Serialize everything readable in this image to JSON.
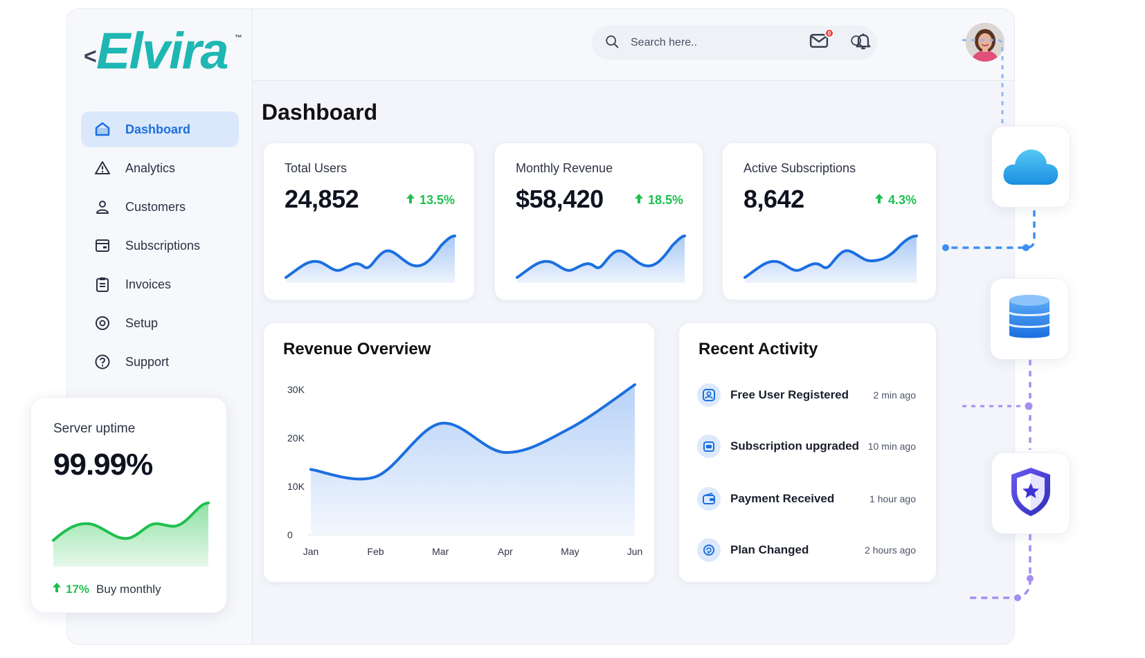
{
  "brand": {
    "name": "Elvira",
    "tm": "™",
    "chevron": "<"
  },
  "sidebar": {
    "items": [
      {
        "label": "Dashboard",
        "icon": "home-icon",
        "active": true
      },
      {
        "label": "Analytics",
        "icon": "warning-triangle-icon"
      },
      {
        "label": "Customers",
        "icon": "user-icon"
      },
      {
        "label": "Subscriptions",
        "icon": "card-icon"
      },
      {
        "label": "Invoices",
        "icon": "clipboard-icon"
      },
      {
        "label": "Setup",
        "icon": "settings-icon"
      },
      {
        "label": "Support",
        "icon": "help-icon"
      }
    ]
  },
  "header": {
    "search_placeholder": "Search here..",
    "mail_badge": "0"
  },
  "page": {
    "title": "Dashboard"
  },
  "stats": [
    {
      "label": "Total Users",
      "value": "24,852",
      "change": "13.5%"
    },
    {
      "label": "Monthly Revenue",
      "value": "$58,420",
      "change": "18.5%"
    },
    {
      "label": "Active Subscriptions",
      "value": "8,642",
      "change": "4.3%"
    }
  ],
  "revenue": {
    "title": "Revenue Overview"
  },
  "chart_data": {
    "type": "area",
    "title": "Revenue Overview",
    "categories": [
      "Jan",
      "Feb",
      "Mar",
      "Apr",
      "May",
      "Jun"
    ],
    "series": [
      {
        "values": [
          13500,
          12000,
          23000,
          17000,
          22000,
          31000
        ]
      }
    ],
    "yticks": [
      "0",
      "10K",
      "20K",
      "30K"
    ],
    "ylim": [
      0,
      30000
    ],
    "grid": false
  },
  "activity": {
    "title": "Recent Activity",
    "items": [
      {
        "label": "Free User Registered",
        "time": "2 min ago",
        "icon": "user-badge-icon"
      },
      {
        "label": "Subscription upgraded",
        "time": "10 min ago",
        "icon": "upgrade-icon"
      },
      {
        "label": "Payment Received",
        "time": "1 hour ago",
        "icon": "wallet-icon"
      },
      {
        "label": "Plan Changed",
        "time": "2 hours ago",
        "icon": "refresh-icon"
      }
    ]
  },
  "uptime": {
    "label": "Server uptime",
    "value": "99.99%",
    "change": "17%",
    "note": "Buy monthly"
  },
  "colors": {
    "accent": "#1b6fe0",
    "positive": "#1fbf4f",
    "brand": "#1eb7b3"
  }
}
